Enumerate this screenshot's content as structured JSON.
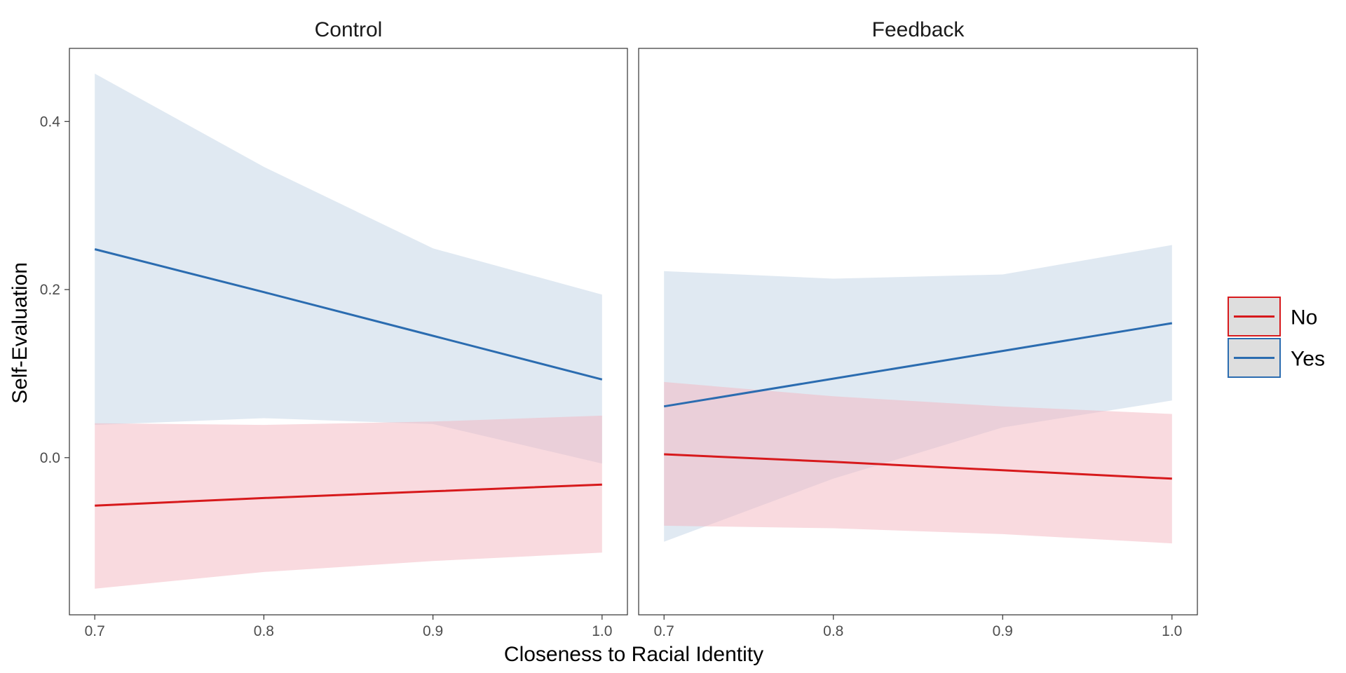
{
  "chart_data": {
    "type": "line",
    "xlabel": "Closeness to Racial Identity",
    "ylabel": "Self-Evaluation",
    "xlim": [
      0.685,
      1.015
    ],
    "ylim": [
      -0.187,
      0.487
    ],
    "x_ticks": [
      0.7,
      0.8,
      0.9,
      1.0
    ],
    "x_tick_labels": [
      "0.7",
      "0.8",
      "0.9",
      "1.0"
    ],
    "y_ticks": [
      0.0,
      0.2,
      0.4
    ],
    "y_tick_labels": [
      "0.0",
      "0.2",
      "0.4"
    ],
    "grid": false,
    "legend_position": "right",
    "colors": {
      "No": "#d7191c",
      "Yes": "#2b6cb0",
      "No_fill": "#f4b6bf",
      "Yes_fill": "#c2d3e6",
      "legend_key_bg": "#dedede"
    },
    "legend": [
      {
        "label": "No"
      },
      {
        "label": "Yes"
      }
    ],
    "panels": [
      {
        "title": "Control",
        "series": [
          {
            "name": "Yes",
            "x": [
              0.7,
              0.8,
              0.9,
              1.0
            ],
            "y": [
              0.248,
              0.197,
              0.145,
              0.093
            ],
            "lower": [
              0.039,
              0.047,
              0.04,
              -0.007
            ],
            "upper": [
              0.457,
              0.346,
              0.249,
              0.194
            ]
          },
          {
            "name": "No",
            "x": [
              0.7,
              0.8,
              0.9,
              1.0
            ],
            "y": [
              -0.057,
              -0.048,
              -0.04,
              -0.032
            ],
            "lower": [
              -0.156,
              -0.136,
              -0.123,
              -0.113
            ],
            "upper": [
              0.041,
              0.039,
              0.043,
              0.05
            ]
          }
        ]
      },
      {
        "title": "Feedback",
        "series": [
          {
            "name": "Yes",
            "x": [
              0.7,
              0.8,
              0.9,
              1.0
            ],
            "y": [
              0.061,
              0.094,
              0.127,
              0.16
            ],
            "lower": [
              -0.1,
              -0.025,
              0.036,
              0.068
            ],
            "upper": [
              0.222,
              0.213,
              0.218,
              0.253
            ]
          },
          {
            "name": "No",
            "x": [
              0.7,
              0.8,
              0.9,
              1.0
            ],
            "y": [
              0.004,
              -0.005,
              -0.015,
              -0.025
            ],
            "lower": [
              -0.081,
              -0.084,
              -0.091,
              -0.102
            ],
            "upper": [
              0.09,
              0.073,
              0.061,
              0.052
            ]
          }
        ]
      }
    ]
  }
}
